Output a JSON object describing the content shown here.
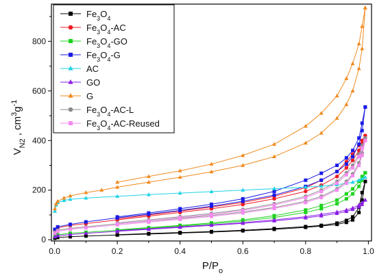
{
  "chart_data": {
    "type": "line",
    "xlabel": {
      "main": "P/P",
      "sub": "o"
    },
    "ylabel": {
      "main": "V",
      "sub": "N2",
      "rest": " , cm",
      "sup1": "3",
      "rest2": "g",
      "sup2": "-1"
    },
    "xlim": [
      -0.01,
      1.01
    ],
    "ylim": [
      -5,
      950
    ],
    "xticks": [
      "0.0",
      "0.2",
      "0.4",
      "0.6",
      "0.8",
      "1.0"
    ],
    "yticks": [
      "0",
      "200",
      "400",
      "600",
      "800"
    ],
    "grid": false,
    "legend_position": "top-left",
    "series": [
      {
        "legend": [
          "Fe",
          "3",
          "O",
          "4",
          ""
        ],
        "color": "#000000",
        "marker": "square",
        "adsorption": [
          [
            0.001,
            6
          ],
          [
            0.01,
            9
          ],
          [
            0.05,
            12
          ],
          [
            0.1,
            15
          ],
          [
            0.2,
            19
          ],
          [
            0.3,
            23
          ],
          [
            0.4,
            27
          ],
          [
            0.5,
            31
          ],
          [
            0.6,
            36
          ],
          [
            0.7,
            42
          ],
          [
            0.8,
            50
          ],
          [
            0.85,
            55
          ],
          [
            0.9,
            62
          ],
          [
            0.93,
            70
          ],
          [
            0.95,
            80
          ],
          [
            0.97,
            110
          ],
          [
            0.98,
            160
          ],
          [
            0.99,
            235
          ]
        ],
        "desorption": [
          [
            0.99,
            235
          ],
          [
            0.98,
            190
          ],
          [
            0.97,
            130
          ],
          [
            0.95,
            92
          ],
          [
            0.93,
            78
          ],
          [
            0.9,
            67
          ],
          [
            0.85,
            58
          ],
          [
            0.8,
            53
          ],
          [
            0.7,
            45
          ],
          [
            0.6,
            38
          ],
          [
            0.5,
            33
          ],
          [
            0.4,
            29
          ],
          [
            0.3,
            25
          ],
          [
            0.2,
            20
          ]
        ]
      },
      {
        "legend": [
          "Fe",
          "3",
          "O",
          "4",
          "-AC"
        ],
        "color": "#ee1c25",
        "marker": "circle",
        "adsorption": [
          [
            0.001,
            38
          ],
          [
            0.01,
            48
          ],
          [
            0.05,
            58
          ],
          [
            0.1,
            65
          ],
          [
            0.2,
            80
          ],
          [
            0.3,
            95
          ],
          [
            0.4,
            110
          ],
          [
            0.5,
            125
          ],
          [
            0.6,
            142
          ],
          [
            0.7,
            165
          ],
          [
            0.8,
            195
          ],
          [
            0.85,
            220
          ],
          [
            0.9,
            255
          ],
          [
            0.93,
            290
          ],
          [
            0.95,
            320
          ],
          [
            0.97,
            360
          ],
          [
            0.98,
            385
          ],
          [
            0.99,
            420
          ]
        ],
        "desorption": [
          [
            0.99,
            420
          ],
          [
            0.98,
            400
          ],
          [
            0.97,
            380
          ],
          [
            0.95,
            345
          ],
          [
            0.93,
            315
          ],
          [
            0.9,
            275
          ],
          [
            0.85,
            240
          ],
          [
            0.8,
            210
          ],
          [
            0.7,
            175
          ],
          [
            0.6,
            150
          ],
          [
            0.5,
            132
          ],
          [
            0.4,
            116
          ],
          [
            0.3,
            100
          ],
          [
            0.2,
            84
          ]
        ]
      },
      {
        "legend": [
          "Fe",
          "3",
          "O",
          "4",
          "-GO"
        ],
        "color": "#1ed31e",
        "marker": "square",
        "adsorption": [
          [
            0.001,
            16
          ],
          [
            0.01,
            20
          ],
          [
            0.05,
            26
          ],
          [
            0.1,
            30
          ],
          [
            0.2,
            38
          ],
          [
            0.3,
            46
          ],
          [
            0.4,
            55
          ],
          [
            0.5,
            64
          ],
          [
            0.6,
            75
          ],
          [
            0.7,
            90
          ],
          [
            0.8,
            110
          ],
          [
            0.85,
            125
          ],
          [
            0.9,
            145
          ],
          [
            0.93,
            165
          ],
          [
            0.95,
            185
          ],
          [
            0.97,
            215
          ],
          [
            0.98,
            240
          ],
          [
            0.99,
            270
          ]
        ],
        "desorption": [
          [
            0.99,
            270
          ],
          [
            0.98,
            255
          ],
          [
            0.97,
            235
          ],
          [
            0.95,
            205
          ],
          [
            0.93,
            185
          ],
          [
            0.9,
            160
          ],
          [
            0.85,
            138
          ],
          [
            0.8,
            120
          ],
          [
            0.7,
            97
          ],
          [
            0.6,
            80
          ],
          [
            0.5,
            68
          ],
          [
            0.4,
            58
          ],
          [
            0.3,
            49
          ],
          [
            0.2,
            40
          ]
        ]
      },
      {
        "legend": [
          "Fe",
          "3",
          "O",
          "4",
          "-G"
        ],
        "color": "#1a1ae6",
        "marker": "square",
        "adsorption": [
          [
            0.001,
            42
          ],
          [
            0.01,
            52
          ],
          [
            0.05,
            62
          ],
          [
            0.1,
            72
          ],
          [
            0.2,
            88
          ],
          [
            0.3,
            103
          ],
          [
            0.4,
            118
          ],
          [
            0.5,
            135
          ],
          [
            0.6,
            155
          ],
          [
            0.7,
            180
          ],
          [
            0.8,
            215
          ],
          [
            0.85,
            240
          ],
          [
            0.9,
            275
          ],
          [
            0.93,
            305
          ],
          [
            0.95,
            335
          ],
          [
            0.97,
            385
          ],
          [
            0.98,
            440
          ],
          [
            0.99,
            535
          ]
        ],
        "desorption": [
          [
            0.99,
            535
          ],
          [
            0.98,
            470
          ],
          [
            0.97,
            410
          ],
          [
            0.95,
            360
          ],
          [
            0.93,
            330
          ],
          [
            0.9,
            300
          ],
          [
            0.85,
            268
          ],
          [
            0.8,
            240
          ],
          [
            0.7,
            195
          ],
          [
            0.6,
            165
          ],
          [
            0.5,
            143
          ],
          [
            0.4,
            125
          ],
          [
            0.3,
            108
          ],
          [
            0.2,
            92
          ]
        ]
      },
      {
        "legend": [
          "AC",
          "",
          "",
          "",
          ""
        ],
        "color": "#1fd3e6",
        "marker": "triangle",
        "adsorption": [
          [
            0.001,
            115
          ],
          [
            0.005,
            140
          ],
          [
            0.01,
            150
          ],
          [
            0.03,
            158
          ],
          [
            0.05,
            163
          ],
          [
            0.1,
            168
          ],
          [
            0.2,
            175
          ],
          [
            0.3,
            182
          ],
          [
            0.4,
            188
          ],
          [
            0.5,
            194
          ],
          [
            0.6,
            200
          ],
          [
            0.7,
            206
          ],
          [
            0.8,
            212
          ],
          [
            0.85,
            216
          ],
          [
            0.9,
            222
          ],
          [
            0.93,
            227
          ],
          [
            0.95,
            232
          ],
          [
            0.97,
            240
          ],
          [
            0.98,
            246
          ],
          [
            0.99,
            252
          ]
        ],
        "desorption": []
      },
      {
        "legend": [
          "GO",
          "",
          "",
          "",
          ""
        ],
        "color": "#8a1ee6",
        "marker": "triangle",
        "adsorption": [
          [
            0.001,
            12
          ],
          [
            0.01,
            16
          ],
          [
            0.05,
            21
          ],
          [
            0.1,
            26
          ],
          [
            0.2,
            34
          ],
          [
            0.3,
            42
          ],
          [
            0.4,
            50
          ],
          [
            0.5,
            58
          ],
          [
            0.6,
            66
          ],
          [
            0.7,
            76
          ],
          [
            0.8,
            88
          ],
          [
            0.85,
            96
          ],
          [
            0.9,
            106
          ],
          [
            0.93,
            114
          ],
          [
            0.95,
            122
          ],
          [
            0.97,
            132
          ],
          [
            0.98,
            142
          ],
          [
            0.99,
            160
          ]
        ],
        "desorption": [
          [
            0.99,
            160
          ],
          [
            0.98,
            150
          ],
          [
            0.97,
            140
          ],
          [
            0.95,
            128
          ],
          [
            0.93,
            120
          ],
          [
            0.9,
            112
          ],
          [
            0.85,
            102
          ],
          [
            0.8,
            93
          ],
          [
            0.7,
            80
          ],
          [
            0.6,
            69
          ],
          [
            0.5,
            60
          ],
          [
            0.4,
            52
          ],
          [
            0.3,
            44
          ],
          [
            0.2,
            36
          ]
        ]
      },
      {
        "legend": [
          "G",
          "",
          "",
          "",
          ""
        ],
        "color": "#f08a1e",
        "marker": "triangle",
        "adsorption": [
          [
            0.001,
            125
          ],
          [
            0.005,
            145
          ],
          [
            0.01,
            155
          ],
          [
            0.03,
            168
          ],
          [
            0.05,
            177
          ],
          [
            0.1,
            190
          ],
          [
            0.15,
            200
          ],
          [
            0.2,
            212
          ],
          [
            0.3,
            232
          ],
          [
            0.4,
            252
          ],
          [
            0.5,
            274
          ],
          [
            0.6,
            300
          ],
          [
            0.7,
            335
          ],
          [
            0.8,
            390
          ],
          [
            0.85,
            430
          ],
          [
            0.9,
            490
          ],
          [
            0.93,
            545
          ],
          [
            0.95,
            600
          ],
          [
            0.97,
            690
          ],
          [
            0.98,
            770
          ],
          [
            0.99,
            935
          ]
        ],
        "desorption": [
          [
            0.99,
            935
          ],
          [
            0.98,
            860
          ],
          [
            0.97,
            790
          ],
          [
            0.95,
            710
          ],
          [
            0.93,
            650
          ],
          [
            0.9,
            580
          ],
          [
            0.85,
            510
          ],
          [
            0.8,
            458
          ],
          [
            0.7,
            385
          ],
          [
            0.6,
            340
          ],
          [
            0.5,
            305
          ],
          [
            0.4,
            278
          ],
          [
            0.3,
            255
          ],
          [
            0.2,
            232
          ]
        ]
      },
      {
        "legend": [
          "Fe",
          "3",
          "O",
          "4",
          "-AC-L"
        ],
        "color": "#8c8c8c",
        "marker": "circle",
        "adsorption": [
          [
            0.001,
            30
          ],
          [
            0.01,
            38
          ],
          [
            0.05,
            46
          ],
          [
            0.1,
            52
          ],
          [
            0.2,
            64
          ],
          [
            0.3,
            75
          ],
          [
            0.4,
            86
          ],
          [
            0.5,
            98
          ],
          [
            0.6,
            112
          ],
          [
            0.7,
            130
          ],
          [
            0.8,
            155
          ],
          [
            0.85,
            175
          ],
          [
            0.9,
            205
          ],
          [
            0.93,
            235
          ],
          [
            0.95,
            265
          ],
          [
            0.97,
            310
          ],
          [
            0.98,
            350
          ],
          [
            0.99,
            410
          ]
        ],
        "desorption": [
          [
            0.99,
            410
          ],
          [
            0.98,
            380
          ],
          [
            0.97,
            345
          ],
          [
            0.95,
            300
          ],
          [
            0.93,
            270
          ],
          [
            0.9,
            235
          ],
          [
            0.85,
            200
          ],
          [
            0.8,
            175
          ],
          [
            0.7,
            145
          ],
          [
            0.6,
            122
          ],
          [
            0.5,
            106
          ],
          [
            0.4,
            93
          ],
          [
            0.3,
            80
          ],
          [
            0.2,
            68
          ]
        ]
      },
      {
        "legend": [
          "Fe",
          "3",
          "O",
          "4",
          "-AC-Reused"
        ],
        "color": "#f58af0",
        "marker": "square",
        "adsorption": [
          [
            0.001,
            26
          ],
          [
            0.01,
            34
          ],
          [
            0.05,
            42
          ],
          [
            0.1,
            48
          ],
          [
            0.2,
            60
          ],
          [
            0.3,
            71
          ],
          [
            0.4,
            82
          ],
          [
            0.5,
            94
          ],
          [
            0.6,
            108
          ],
          [
            0.7,
            126
          ],
          [
            0.8,
            150
          ],
          [
            0.85,
            170
          ],
          [
            0.9,
            200
          ],
          [
            0.93,
            228
          ],
          [
            0.95,
            258
          ],
          [
            0.97,
            300
          ],
          [
            0.98,
            340
          ],
          [
            0.99,
            400
          ]
        ],
        "desorption": [
          [
            0.99,
            400
          ],
          [
            0.98,
            370
          ],
          [
            0.97,
            335
          ],
          [
            0.95,
            290
          ],
          [
            0.93,
            262
          ],
          [
            0.9,
            228
          ],
          [
            0.85,
            194
          ],
          [
            0.8,
            170
          ],
          [
            0.7,
            140
          ],
          [
            0.6,
            118
          ],
          [
            0.5,
            102
          ],
          [
            0.4,
            89
          ],
          [
            0.3,
            76
          ],
          [
            0.2,
            64
          ]
        ]
      }
    ]
  }
}
